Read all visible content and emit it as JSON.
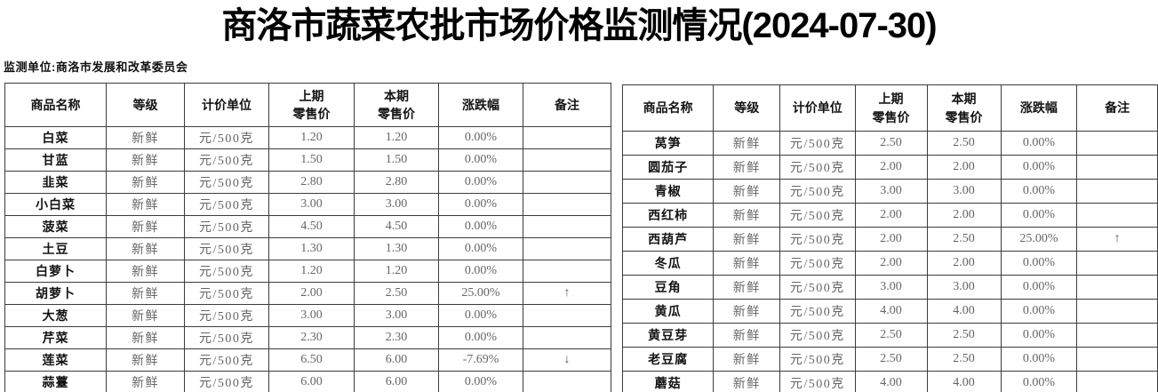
{
  "title": "商洛市蔬菜农批市场价格监测情况(2024-07-30)",
  "subtitle": "监测单位:商洛市发展和改革委员会",
  "colors": {
    "text_dark": "#141414",
    "text_muted": "#666666",
    "border": "#3c3c3c",
    "background": "#ffffff"
  },
  "tables": [
    {
      "id": "left-price-table",
      "headers": [
        "商品名称",
        "等级",
        "计价单位",
        "上期\n零售价",
        "本期\n零售价",
        "涨跌幅",
        "备注"
      ],
      "rows": [
        [
          "白菜",
          "新鲜",
          "元/500克",
          "1.20",
          "1.20",
          "0.00%",
          ""
        ],
        [
          "甘蓝",
          "新鲜",
          "元/500克",
          "1.50",
          "1.50",
          "0.00%",
          ""
        ],
        [
          "韭菜",
          "新鲜",
          "元/500克",
          "2.80",
          "2.80",
          "0.00%",
          ""
        ],
        [
          "小白菜",
          "新鲜",
          "元/500克",
          "3.00",
          "3.00",
          "0.00%",
          ""
        ],
        [
          "菠菜",
          "新鲜",
          "元/500克",
          "4.50",
          "4.50",
          "0.00%",
          ""
        ],
        [
          "土豆",
          "新鲜",
          "元/500克",
          "1.30",
          "1.30",
          "0.00%",
          ""
        ],
        [
          "白萝卜",
          "新鲜",
          "元/500克",
          "1.20",
          "1.20",
          "0.00%",
          ""
        ],
        [
          "胡萝卜",
          "新鲜",
          "元/500克",
          "2.00",
          "2.50",
          "25.00%",
          "↑"
        ],
        [
          "大葱",
          "新鲜",
          "元/500克",
          "3.00",
          "3.00",
          "0.00%",
          ""
        ],
        [
          "芹菜",
          "新鲜",
          "元/500克",
          "2.30",
          "2.30",
          "0.00%",
          ""
        ],
        [
          "莲菜",
          "新鲜",
          "元/500克",
          "6.50",
          "6.00",
          "-7.69%",
          "↓"
        ],
        [
          "蒜薹",
          "新鲜",
          "元/500克",
          "6.00",
          "6.00",
          "0.00%",
          ""
        ]
      ]
    },
    {
      "id": "right-price-table",
      "headers": [
        "商品名称",
        "等级",
        "计价单位",
        "上期\n零售价",
        "本期\n零售价",
        "涨跌幅",
        "备注"
      ],
      "rows": [
        [
          "莴笋",
          "新鲜",
          "元/500克",
          "2.50",
          "2.50",
          "0.00%",
          ""
        ],
        [
          "圆茄子",
          "新鲜",
          "元/500克",
          "2.00",
          "2.00",
          "0.00%",
          ""
        ],
        [
          "青椒",
          "新鲜",
          "元/500克",
          "3.00",
          "3.00",
          "0.00%",
          ""
        ],
        [
          "西红柿",
          "新鲜",
          "元/500克",
          "2.00",
          "2.00",
          "0.00%",
          ""
        ],
        [
          "西葫芦",
          "新鲜",
          "元/500克",
          "2.00",
          "2.50",
          "25.00%",
          "↑"
        ],
        [
          "冬瓜",
          "新鲜",
          "元/500克",
          "2.00",
          "2.00",
          "0.00%",
          ""
        ],
        [
          "豆角",
          "新鲜",
          "元/500克",
          "3.00",
          "3.00",
          "0.00%",
          ""
        ],
        [
          "黄瓜",
          "新鲜",
          "元/500克",
          "4.00",
          "4.00",
          "0.00%",
          ""
        ],
        [
          "黄豆芽",
          "新鲜",
          "元/500克",
          "2.50",
          "2.50",
          "0.00%",
          ""
        ],
        [
          "老豆腐",
          "新鲜",
          "元/500克",
          "2.50",
          "2.50",
          "0.00%",
          ""
        ],
        [
          "蘑菇",
          "新鲜",
          "元/500克",
          "4.00",
          "4.00",
          "0.00%",
          ""
        ]
      ]
    }
  ]
}
